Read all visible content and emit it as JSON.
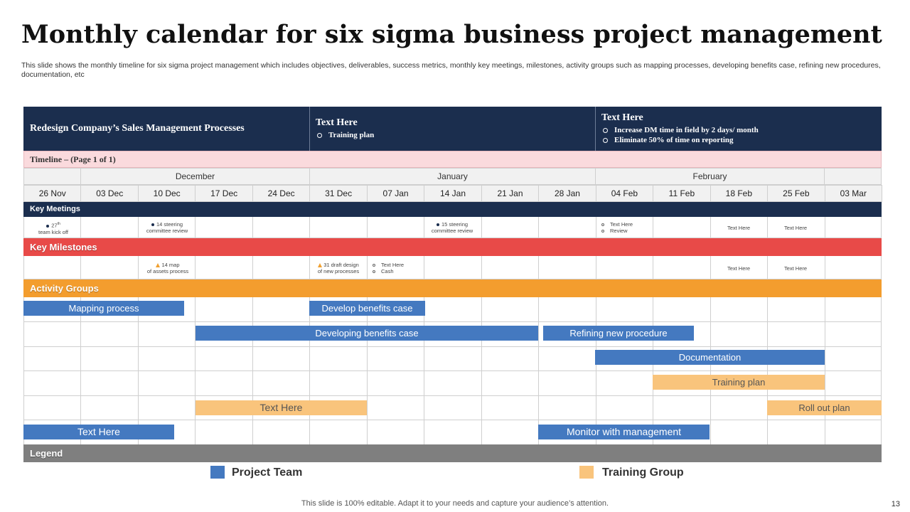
{
  "title": "Monthly calendar for six sigma business project management",
  "subtitle": "This slide shows the monthly timeline for six sigma project management which includes objectives, deliverables, success metrics, monthly key meetings, milestones, activity groups such as mapping processes, developing benefits case, refining new procedures, documentation, etc",
  "header": {
    "col1_title": "Redesign Company’s Sales Management Processes",
    "col2_title": "Text Here",
    "col2_items": [
      "Training plan"
    ],
    "col3_title": "Text Here",
    "col3_items": [
      "Increase DM time in  field by 2 days/ month",
      "Eliminate 50% of time on reporting"
    ]
  },
  "timeline_label": "Timeline – (Page 1 of 1)",
  "months": [
    "December",
    "January",
    "February"
  ],
  "weeks": [
    "26 Nov",
    "03 Dec",
    "10 Dec",
    "17 Dec",
    "24 Dec",
    "31 Dec",
    "07 Jan",
    "14 Jan",
    "21 Jan",
    "28 Jan",
    "04 Feb",
    "11 Feb",
    "18 Feb",
    "25 Feb",
    "03 Mar"
  ],
  "sections": {
    "key_meetings": "Key Meetings",
    "key_milestones": "Key Milestones",
    "activity_groups": "Activity Groups",
    "legend": "Legend"
  },
  "meetings": {
    "m1_sup": "27",
    "m1_sup2": "th",
    "m1_line2": "team kick off",
    "m2_line1": "14 steering",
    "m2_line2": "committee review",
    "m3_line1": "15 steering",
    "m3_line2": "committee review",
    "m4_item1": "Text Here",
    "m4_item2": "Review",
    "m5": "Text Here",
    "m6": "Text Here"
  },
  "milestones": {
    "ms1_line1": "14 map",
    "ms1_line2": "of assets process",
    "ms2_line1": "31 draft design",
    "ms2_line2": "of new processes",
    "ms3_item1": "Text Here",
    "ms3_item2": "Cash",
    "ms4": "Text Here",
    "ms5": "Text Here"
  },
  "activities": {
    "a1": "Mapping process",
    "a2": "Develop  benefits case",
    "a3": "Developing  benefits case",
    "a4": "Refining new procedure",
    "a5": "Documentation",
    "a6": "Training  plan",
    "a7": "Text Here",
    "a8": "Roll out plan",
    "a9": "Text Here",
    "a10": "Monitor  with management"
  },
  "legend": {
    "project_team": "Project Team",
    "training_group": "Training Group"
  },
  "colors": {
    "navy": "#1b2e4e",
    "red": "#e84a48",
    "orange": "#f39d2e",
    "gray": "#7f7f7f",
    "blue_bar": "#4479c0",
    "peach_bar": "#f9c47c"
  },
  "footer": "This slide is 100% editable. Adapt it to your needs and capture your audience’s attention.",
  "page_number": "13"
}
